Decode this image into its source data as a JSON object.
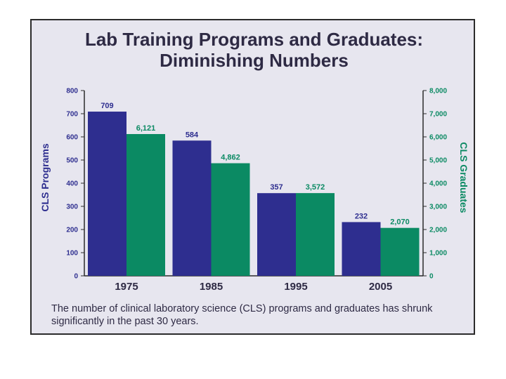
{
  "chart_data": {
    "type": "bar",
    "title": "Lab Training Programs and Graduates:",
    "subtitle": "Diminishing Numbers",
    "categories": [
      "1975",
      "1985",
      "1995",
      "2005"
    ],
    "series": [
      {
        "name": "CLS Programs",
        "axis": "left",
        "color": "#2e2e8f",
        "values": [
          709,
          584,
          357,
          232
        ],
        "labels": [
          "709",
          "584",
          "357",
          "232"
        ]
      },
      {
        "name": "CLS Graduates",
        "axis": "right",
        "color": "#0b8a63",
        "values": [
          6121,
          4862,
          3572,
          2070
        ],
        "labels": [
          "6,121",
          "4,862",
          "3,572",
          "2,070"
        ]
      }
    ],
    "ylabel": "CLS Programs",
    "y2label": "CLS Graduates",
    "ylim": [
      0,
      800
    ],
    "y2lim": [
      0,
      8000
    ],
    "yticks": [
      "0",
      "100",
      "200",
      "300",
      "400",
      "500",
      "600",
      "700",
      "800"
    ],
    "y2ticks": [
      "0",
      "1,000",
      "2,000",
      "3,000",
      "4,000",
      "5,000",
      "6,000",
      "7,000",
      "8,000"
    ],
    "grid": false,
    "caption": "The number of clinical laboratory science (CLS) programs and graduates has shrunk significantly in the past 30 years."
  }
}
